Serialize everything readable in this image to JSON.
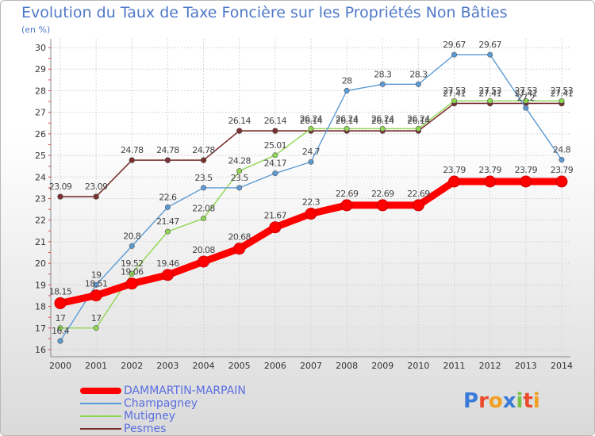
{
  "chart_data": {
    "type": "line",
    "title": "Evolution du Taux de Taxe Foncière sur les Propriétés Non Bâties",
    "unit_label": "(en %)",
    "xlabel": "",
    "ylabel": "",
    "ylim": [
      16,
      30
    ],
    "yticks": [
      "16",
      "17",
      "18",
      "19",
      "20",
      "21",
      "22",
      "23",
      "24",
      "25",
      "26",
      "27",
      "28",
      "29",
      "30"
    ],
    "categories": [
      "2000",
      "2001",
      "2002",
      "2003",
      "2004",
      "2005",
      "2006",
      "2007",
      "2008",
      "2009",
      "2010",
      "2011",
      "2012",
      "2013",
      "2014"
    ],
    "series": [
      {
        "name": "DAMMARTIN-MARPAIN",
        "color": "#ff0000",
        "values": [
          18.15,
          18.51,
          19.06,
          19.46,
          20.08,
          20.68,
          21.67,
          22.3,
          22.69,
          22.69,
          22.69,
          23.79,
          23.79,
          23.79,
          23.79
        ],
        "labels": [
          "18.15",
          "18.51",
          "19.06",
          "19.46",
          "20.08",
          "20.68",
          "21.67",
          "22.3",
          "22.69",
          "22.69",
          "22.69",
          "23.79",
          "23.79",
          "23.79",
          "23.79"
        ]
      },
      {
        "name": "Champagney",
        "color": "#5b9bd5",
        "values": [
          16.4,
          19,
          20.8,
          22.6,
          23.5,
          23.5,
          24.17,
          24.7,
          28,
          28.3,
          28.3,
          29.67,
          29.67,
          27.2,
          24.8
        ],
        "labels": [
          "16.4",
          "19",
          "20.8",
          "22.6",
          "23.5",
          "23.5",
          "24.17",
          "24.7",
          "28",
          "28.3",
          "28.3",
          "29.67",
          "29.67",
          "27.2",
          "24.8"
        ]
      },
      {
        "name": "Mutigney",
        "color": "#8ed651",
        "values": [
          17,
          17,
          19.52,
          21.47,
          22.08,
          24.28,
          25.01,
          26.24,
          26.24,
          26.24,
          26.24,
          27.53,
          27.53,
          27.53,
          27.53
        ],
        "labels": [
          "17",
          "17",
          "19.52",
          "21.47",
          "22.08",
          "24.28",
          "25.01",
          "26.24",
          "26.24",
          "26.24",
          "26.24",
          "27.53",
          "27.53",
          "27.53",
          "27.53"
        ]
      },
      {
        "name": "Pesmes",
        "color": "#7b3030",
        "values": [
          23.09,
          23.09,
          24.78,
          24.78,
          24.78,
          26.14,
          26.14,
          26.14,
          26.14,
          26.14,
          26.14,
          27.41,
          27.41,
          27.41,
          27.41
        ],
        "labels": [
          "23.09",
          "23.09",
          "24.78",
          "24.78",
          "24.78",
          "26.14",
          "26.14",
          "26.14",
          "26.14",
          "26.14",
          "26.14",
          "27.41",
          "27.41",
          "27.41",
          "27.41"
        ]
      }
    ]
  },
  "logo": {
    "text": "Proxiti"
  }
}
